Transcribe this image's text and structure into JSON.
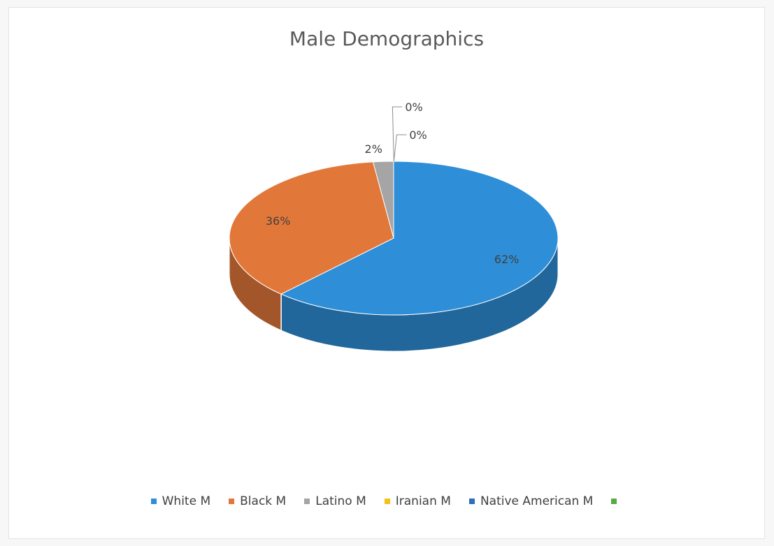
{
  "chart_data": {
    "type": "pie",
    "title": "Male Demographics",
    "categories": [
      "White M",
      "Black M",
      "Latino M",
      "Iranian M",
      "Native American M",
      ""
    ],
    "values": [
      62,
      36,
      2,
      0,
      0,
      0
    ],
    "data_labels": [
      "62%",
      "36%",
      "2%",
      "0%",
      "0%",
      ""
    ],
    "colors": [
      "#2e8fd8",
      "#e2773a",
      "#a5a5a5",
      "#f4c21b",
      "#2b6fbd",
      "#5ba845"
    ],
    "legend_position": "bottom",
    "three_d": true
  }
}
